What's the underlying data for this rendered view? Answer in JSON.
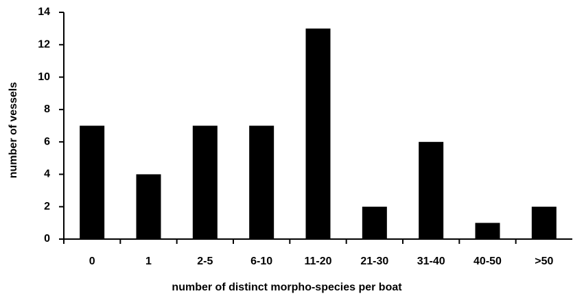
{
  "chart_data": {
    "type": "bar",
    "x_label": "number of distinct morpho-species per boat",
    "y_label": "number of vessels",
    "categories": [
      "0",
      "1",
      "2-5",
      "6-10",
      "11-20",
      "21-30",
      "31-40",
      "40-50",
      ">50"
    ],
    "values": [
      7,
      4,
      7,
      7,
      13,
      2,
      6,
      1,
      2
    ],
    "color": "#000000",
    "ylim": [
      0,
      14
    ],
    "yticks": [
      0,
      2,
      4,
      6,
      8,
      10,
      12,
      14
    ],
    "grid": false
  }
}
